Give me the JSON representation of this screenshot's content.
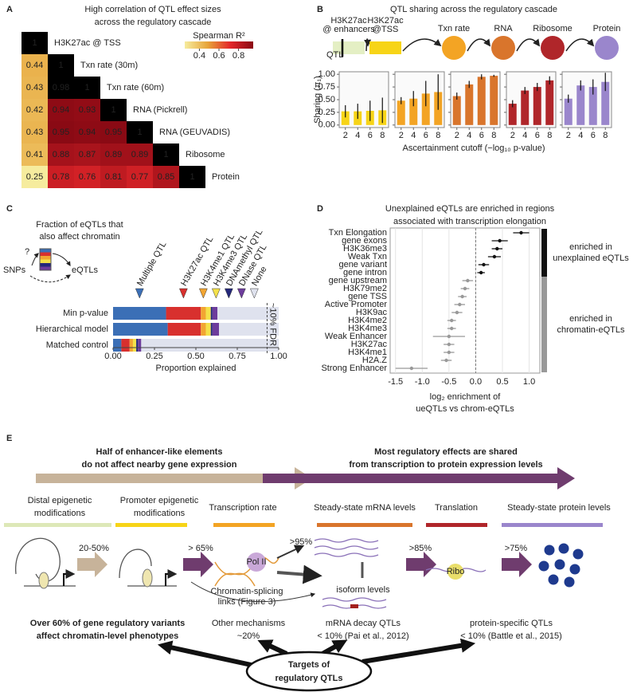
{
  "panel_labels": [
    "A",
    "B",
    "C",
    "D",
    "E"
  ],
  "chart_data": [
    {
      "type": "heatmap",
      "title": [
        "High correlation of QTL effect sizes",
        "across the regulatory cascade"
      ],
      "labels": [
        "H3K27ac @ TSS",
        "Txn rate (30m)",
        "Txn rate (60m)",
        "RNA (Pickrell)",
        "RNA (GEUVADIS)",
        "Ribosome",
        "Protein"
      ],
      "values": [
        [
          1
        ],
        [
          0.44,
          1
        ],
        [
          0.43,
          0.98,
          1
        ],
        [
          0.42,
          0.94,
          0.93,
          1
        ],
        [
          0.43,
          0.95,
          0.94,
          0.95,
          1
        ],
        [
          0.41,
          0.88,
          0.87,
          0.89,
          0.89,
          1
        ],
        [
          0.25,
          0.78,
          0.76,
          0.81,
          0.77,
          0.85,
          1
        ]
      ],
      "colors": [
        "#f6ec9e",
        "#e7a53a",
        "#e3262a",
        "#8a0a14"
      ],
      "over_color": "#000000",
      "colorbar": {
        "title": "Spearman R²",
        "lim": [
          0.25,
          0.95
        ],
        "ticks": [
          0.4,
          0.6,
          0.8
        ]
      }
    },
    {
      "type": "bar",
      "title": "QTL sharing across the regulatory cascade",
      "qtl_label": "QTL",
      "stages": [
        {
          "name": [
            "H3K27ac",
            "@ enhancers"
          ],
          "color": "#e4efc4"
        },
        {
          "name": [
            "H3K27ac",
            "@TSS"
          ],
          "color": "#f7d417"
        },
        {
          "name": [
            "Txn rate"
          ],
          "color": "#f3a424"
        },
        {
          "name": [
            "RNA"
          ],
          "color": "#d9752c"
        },
        {
          "name": [
            "Ribosome"
          ],
          "color": "#b0262a"
        },
        {
          "name": [
            "Protein"
          ],
          "color": "#9a86cc"
        }
      ],
      "x": [
        2,
        4,
        6,
        8
      ],
      "xlim": [
        1,
        9
      ],
      "xticks": [
        2,
        4,
        6,
        8
      ],
      "ylim": [
        -0.05,
        1.05
      ],
      "yticks": [
        {
          "value": 0,
          "label": "0.00"
        },
        {
          "value": 0.25,
          "label": "0.25"
        },
        {
          "value": 0.5,
          "label": "0.50"
        },
        {
          "value": 0.75,
          "label": "0.75"
        },
        {
          "value": 1,
          "label": "1.00"
        }
      ],
      "ylabel": "Sharing (π₁)",
      "xlabel": "Ascertainment cutoff (−log₁₀ p-value)",
      "series": [
        {
          "color": "#f7d417",
          "values": [
            0.27,
            0.27,
            0.28,
            0.29
          ],
          "errors": [
            0.12,
            0.15,
            0.2,
            0.25
          ]
        },
        {
          "color": "#f3a424",
          "values": [
            0.48,
            0.52,
            0.62,
            0.65
          ],
          "errors": [
            0.07,
            0.15,
            0.25,
            0.35
          ]
        },
        {
          "color": "#d9752c",
          "values": [
            0.57,
            0.8,
            0.95,
            0.97
          ],
          "errors": [
            0.07,
            0.07,
            0.05,
            0.02
          ]
        },
        {
          "color": "#b0262a",
          "values": [
            0.42,
            0.68,
            0.75,
            0.88
          ],
          "errors": [
            0.07,
            0.07,
            0.08,
            0.08
          ]
        },
        {
          "color": "#9a86cc",
          "values": [
            0.52,
            0.78,
            0.75,
            0.85
          ],
          "errors": [
            0.08,
            0.1,
            0.15,
            0.18
          ]
        }
      ]
    },
    {
      "type": "stacked_bar",
      "title": [
        "Fraction of eQTLs that",
        "also affect chromatin"
      ],
      "snps": "SNPs",
      "eqtls": "eQTLs",
      "question": "?",
      "categories": [
        "Min p-value",
        "Hierarchical model",
        "Matched control"
      ],
      "series": [
        {
          "name": "Multiple QTL",
          "color": "#3b6fb6",
          "values": [
            0.32,
            0.33,
            0.05
          ]
        },
        {
          "name": "H3K27ac QTL",
          "color": "#d8302e",
          "values": [
            0.21,
            0.2,
            0.05
          ]
        },
        {
          "name": "H3K4me1 QTL",
          "color": "#f2a532",
          "values": [
            0.03,
            0.03,
            0.02
          ]
        },
        {
          "name": "H3K4me3 QTL",
          "color": "#f4e14a",
          "values": [
            0.03,
            0.03,
            0.02
          ]
        },
        {
          "name": "DNAmethyl QTL",
          "color": "#24287a",
          "values": [
            0.01,
            0.01,
            0.01
          ]
        },
        {
          "name": "DNase QTL",
          "color": "#6d3c9c",
          "values": [
            0.03,
            0.04,
            0.02
          ]
        },
        {
          "name": "None",
          "color": "#dfe2ee",
          "values": [
            0.37,
            0.36,
            0.83
          ]
        }
      ],
      "xlim": [
        0,
        1
      ],
      "xticks": [
        {
          "value": 0,
          "label": "0.00"
        },
        {
          "value": 0.25,
          "label": "0.25"
        },
        {
          "value": 0.5,
          "label": "0.50"
        },
        {
          "value": 0.75,
          "label": "0.75"
        },
        {
          "value": 1,
          "label": "1.00"
        }
      ],
      "xlabel": "Proportion explained",
      "annotation": {
        "text": "~10% FDR",
        "x": 0.93
      }
    },
    {
      "type": "dot",
      "title": [
        "Unexplained eQTLs are enriched in regions",
        "associated with transcription elongation"
      ],
      "categories": [
        "Txn Elongation",
        "gene exons",
        "H3K36me3",
        "Weak Txn",
        "gene variant",
        "gene intron",
        "gene upstream",
        "H3K79me2",
        "gene TSS",
        "Active Promoter",
        "H3K9ac",
        "H3K4me2",
        "H3K4me3",
        "Weak Enhancer",
        "H3K27ac",
        "H3K4me1",
        "H2A.Z",
        "Strong Enhancer"
      ],
      "values": [
        0.85,
        0.45,
        0.4,
        0.35,
        0.15,
        0.1,
        -0.15,
        -0.2,
        -0.25,
        -0.3,
        -0.35,
        -0.45,
        -0.45,
        -0.5,
        -0.5,
        -0.5,
        -0.55,
        -1.2
      ],
      "errors": [
        0.15,
        0.15,
        0.1,
        0.12,
        0.1,
        0.07,
        0.1,
        0.08,
        0.08,
        0.1,
        0.1,
        0.08,
        0.08,
        0.3,
        0.1,
        0.1,
        0.1,
        0.3
      ],
      "point_group": [
        0,
        0,
        0,
        0,
        0,
        0,
        1,
        1,
        1,
        1,
        1,
        1,
        1,
        1,
        1,
        1,
        1,
        1
      ],
      "groups": [
        {
          "label": [
            "enriched in",
            "unexplained eQTLs"
          ],
          "color": "#111111"
        },
        {
          "label": [
            "enriched in",
            "chromatin-eQTLs"
          ],
          "color": "#999999"
        }
      ],
      "xlim": [
        -1.6,
        1.2
      ],
      "xticks": [
        -1.5,
        {
          "value": -1,
          "label": "-1.0"
        },
        -0.5,
        {
          "value": 0,
          "label": "0.0"
        },
        0.5,
        {
          "value": 1,
          "label": "1.0"
        }
      ],
      "refline": 0,
      "grid": true,
      "xlabel": [
        "log₂ enrichment of",
        "ueQTLs vs chrom-eQTLs"
      ]
    }
  ],
  "diagram": {
    "headers": [
      [
        "Half of enhancer-like elements",
        "do not affect nearby gene expression"
      ],
      [
        "Most regulatory effects are shared",
        "from transcription to protein expression levels"
      ]
    ],
    "stages": [
      {
        "name": [
          "Distal epigenetic",
          "modifications"
        ],
        "color": "#dde8b8"
      },
      {
        "name": [
          "Promoter epigenetic",
          "modifications"
        ],
        "color": "#f7d417"
      },
      {
        "name": [
          "Transcription rate"
        ],
        "color": "#f3a424"
      },
      {
        "name": [
          "Steady-state mRNA levels"
        ],
        "color": "#d9752c"
      },
      {
        "name": [
          "Translation"
        ],
        "color": "#b0262a"
      },
      {
        "name": [
          "Steady-state protein levels"
        ],
        "color": "#9a86cc"
      }
    ],
    "arrow_labels": [
      "20-50%",
      "> 65%",
      ">95%",
      ">85%",
      ">75%"
    ],
    "pol": "Pol II",
    "ribo": "Ribo",
    "isoform": "isoform levels",
    "splicing": [
      "Chromatin-splicing",
      "links (Figure 3)"
    ],
    "bottom": [
      [
        "Over 60% of gene regulatory variants",
        "affect chromatin-level phenotypes"
      ],
      [
        "Other mechanisms",
        "~20%"
      ],
      [
        "mRNA decay QTLs",
        "< 10% (Pai et al., 2012)"
      ],
      [
        "protein-specific QTLs",
        "< 10% (Battle et al., 2015)"
      ]
    ],
    "targets": [
      "Targets of",
      "regulatory QTLs"
    ]
  }
}
